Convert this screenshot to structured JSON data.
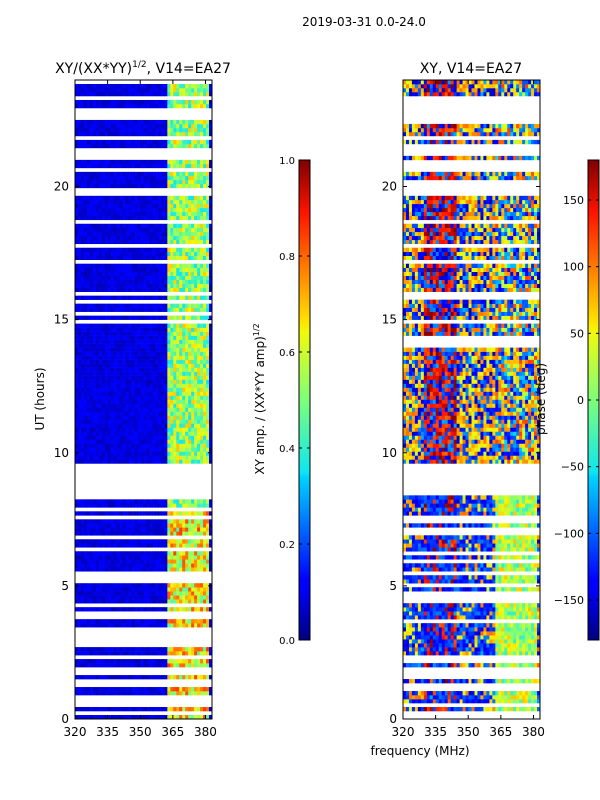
{
  "figure": {
    "suptitle": "2019-03-31 0.0-24.0",
    "xlabel": "frequency (MHz)"
  },
  "chart_data": [
    {
      "type": "heatmap",
      "title_main": "XY/(XX*YY)",
      "title_sup": "1/2",
      "title_tail": ", V14=EA27",
      "xlabel": "",
      "ylabel": "UT (hours)",
      "xlim": [
        320,
        383
      ],
      "ylim": [
        0,
        24
      ],
      "x_ticks": [
        320,
        335,
        350,
        365,
        380
      ],
      "y_ticks": [
        0,
        5,
        10,
        15,
        20
      ],
      "color_range": [
        0.0,
        1.0
      ],
      "colorbar": {
        "label_main": "XY amp. / (XX*YY amp)",
        "label_sup": "1/2",
        "ticks": [
          "0.0",
          "0.2",
          "0.4",
          "0.6",
          "0.8",
          "1.0"
        ],
        "tick_values": [
          0.0,
          0.2,
          0.4,
          0.6,
          0.8,
          1.0
        ]
      },
      "description": "Normalized cross-correlation amplitude vs frequency and time; mostly low (blue) with elevated values (cyan–yellow) near 362–382 MHz; blank rows where data is flagged."
    },
    {
      "type": "heatmap",
      "title_main": "XY, V14=EA27",
      "xlabel": "frequency (MHz)",
      "ylabel": "",
      "xlim": [
        320,
        383
      ],
      "ylim": [
        0,
        24
      ],
      "x_ticks": [
        320,
        335,
        350,
        365,
        380
      ],
      "y_ticks": [
        0,
        5,
        10,
        15,
        20
      ],
      "color_range": [
        -180,
        180
      ],
      "colorbar": {
        "label_main": "phase (deg)",
        "ticks": [
          "−150",
          "−100",
          "−50",
          "0",
          "50",
          "100",
          "150"
        ],
        "tick_values": [
          -150,
          -100,
          -50,
          0,
          50,
          100,
          150
        ]
      },
      "description": "XY phase vs frequency and time; mixed red/blue noise-like phases with a distinct band near 362–382 MHz; blank rows where data is flagged."
    }
  ]
}
